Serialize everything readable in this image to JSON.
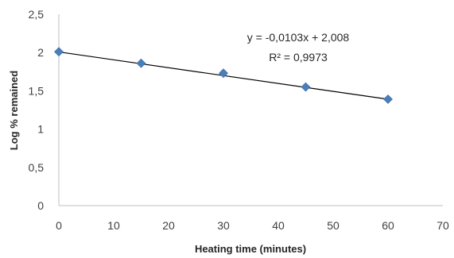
{
  "chart_data": {
    "type": "scatter",
    "title": "",
    "xlabel": "Heating time (minutes)",
    "ylabel": "Log % remained",
    "xlim": [
      0,
      70
    ],
    "ylim": [
      0,
      2.5
    ],
    "x_ticks": [
      "0",
      "10",
      "20",
      "30",
      "40",
      "50",
      "60",
      "70"
    ],
    "y_ticks": [
      "0",
      "0,5",
      "1",
      "1,5",
      "2",
      "2,5"
    ],
    "grid": false,
    "legend": "none",
    "series": [
      {
        "x": [
          0,
          15,
          30,
          45,
          60
        ],
        "y": [
          2.01,
          1.86,
          1.73,
          1.55,
          1.39
        ],
        "marker": "diamond",
        "color": "#4a7ebb"
      }
    ],
    "trendline": {
      "type": "linear",
      "slope": -0.0103,
      "intercept": 2.008,
      "x_range": [
        0,
        60
      ],
      "color": "#000000",
      "equation_label": "y = -0,0103x + 2,008",
      "r2_label": "R² = 0,9973"
    }
  }
}
